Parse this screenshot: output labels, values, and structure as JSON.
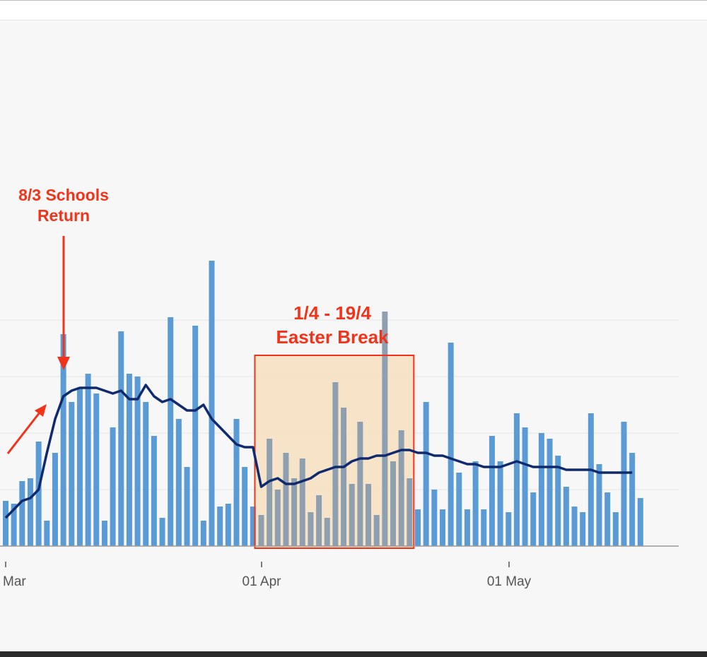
{
  "chart_data": {
    "type": "bar",
    "x_axis": {
      "type": "date",
      "tick_labels": [
        "Mar",
        "01 Apr",
        "01 May"
      ]
    },
    "grid": "horizontal",
    "start_date": "2021-03-01",
    "colors": {
      "bars": "#5b9bd5",
      "bars_in_highlight": "#8ea0b0",
      "average_line": "#0f2a6e",
      "annotation": "#f2331a",
      "highlight_fill": "#f7dcb8"
    },
    "series": [
      {
        "type": "bar",
        "values": [
          16,
          15,
          23,
          24,
          37,
          9,
          33,
          75,
          51,
          56,
          61,
          54,
          9,
          42,
          76,
          61,
          60,
          51,
          39,
          10,
          81,
          45,
          28,
          78,
          9,
          101,
          14,
          15,
          45,
          28,
          14,
          11,
          38,
          20,
          33,
          24,
          31,
          12,
          18,
          10,
          58,
          49,
          22,
          44,
          22,
          11,
          83,
          30,
          41,
          24,
          13,
          51,
          20,
          13,
          72,
          26,
          13,
          30,
          13,
          39,
          30,
          12,
          47,
          42,
          19,
          40,
          38,
          32,
          21,
          14,
          12,
          47,
          29,
          19,
          12,
          44,
          33,
          17
        ]
      },
      {
        "type": "line",
        "values": [
          10,
          13,
          16,
          17,
          20,
          33,
          45,
          53,
          55,
          56,
          56,
          56,
          55,
          54,
          55,
          52,
          52,
          57,
          53,
          51,
          52,
          50,
          48,
          48,
          50,
          45,
          42,
          39,
          36,
          35,
          35,
          21,
          23,
          24,
          22,
          22,
          23,
          24,
          26,
          27,
          28,
          28,
          30,
          31,
          31,
          32,
          32,
          33,
          34,
          34,
          33,
          33,
          32,
          32,
          31,
          30,
          29,
          29,
          28,
          28,
          28,
          29,
          30,
          29,
          28,
          28,
          28,
          28,
          27,
          27,
          27,
          27,
          26,
          26,
          26,
          26,
          26
        ]
      }
    ],
    "annotations": [
      {
        "text_lines": [
          "8/3 Schools",
          "Return"
        ]
      },
      {
        "text_lines": [
          "1/4 - 19/4",
          "Easter Break"
        ],
        "start": "2021-04-01",
        "end": "2021-04-19"
      }
    ]
  }
}
